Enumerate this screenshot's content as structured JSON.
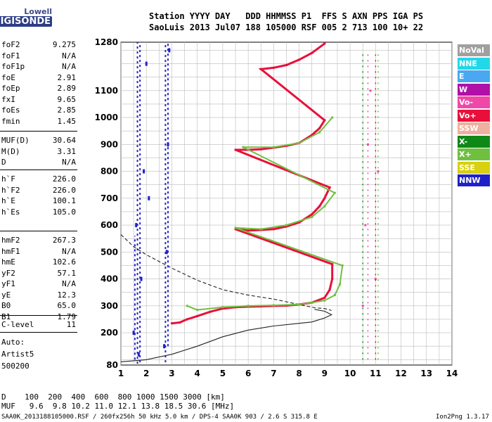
{
  "logo": {
    "line1": "Lowell",
    "line2": "DIGISONDE"
  },
  "header": {
    "line1": "Station YYYY DAY   DDD HHMMSS P1  FFS S AXN PPS IGA PS",
    "line2": "SaoLuis 2013 Jul07 188 105000 RSF 005 2 713 100 10+ 22"
  },
  "params_group1": [
    {
      "key": "foF2",
      "value": "9.275"
    },
    {
      "key": "foF1",
      "value": "N/A"
    },
    {
      "key": "foF1p",
      "value": "N/A"
    },
    {
      "key": "foE",
      "value": "2.91"
    },
    {
      "key": "foEp",
      "value": "2.89"
    },
    {
      "key": "fxI",
      "value": "9.65"
    },
    {
      "key": "foEs",
      "value": "2.85"
    },
    {
      "key": "fmin",
      "value": "1.45"
    }
  ],
  "params_group2": [
    {
      "key": "MUF(D)",
      "value": "30.64"
    },
    {
      "key": "M(D)",
      "value": "3.31"
    },
    {
      "key": "D",
      "value": "N/A"
    }
  ],
  "params_group3": [
    {
      "key": "h`F",
      "value": "226.0"
    },
    {
      "key": "h`F2",
      "value": "226.0"
    },
    {
      "key": "h`E",
      "value": "100.1"
    },
    {
      "key": "h`Es",
      "value": "105.0"
    }
  ],
  "params_group4": [
    {
      "key": "hmF2",
      "value": "267.3"
    },
    {
      "key": "hmF1",
      "value": "N/A"
    },
    {
      "key": "hmE",
      "value": "102.6"
    },
    {
      "key": "yF2",
      "value": "57.1"
    },
    {
      "key": "yF1",
      "value": "N/A"
    },
    {
      "key": "yE",
      "value": "12.3"
    },
    {
      "key": "B0",
      "value": "65.0"
    },
    {
      "key": "B1",
      "value": "1.79"
    }
  ],
  "params_group5": [
    {
      "key": "C-level",
      "value": "11"
    }
  ],
  "auto": {
    "line1": "Auto:",
    "line2": "Artist5",
    "line3": "500200"
  },
  "legend": [
    {
      "label": "NoVal",
      "color": "#a0a0a0"
    },
    {
      "label": "NNE",
      "color": "#22d8e8"
    },
    {
      "label": "E",
      "color": "#4aa8f0"
    },
    {
      "label": "W",
      "color": "#b010a8"
    },
    {
      "label": "Vo-",
      "color": "#f048a8"
    },
    {
      "label": "Vo+",
      "color": "#e8103a"
    },
    {
      "label": "SSW",
      "color": "#f0b0a0"
    },
    {
      "label": "X-",
      "color": "#108818"
    },
    {
      "label": "X+",
      "color": "#70c040"
    },
    {
      "label": "SSE",
      "color": "#d8d010"
    },
    {
      "label": "NNW",
      "color": "#2020c8"
    }
  ],
  "bottom": {
    "d_line": "D    100  200  400  600  800 1000 1500 3000 [km]",
    "muf_line": "MUF   9.6  9.8 10.2 11.0 12.1 13.8 18.5 30.6 [MHz]"
  },
  "footer": {
    "left": "SAA0K_2013188105000.RSF / 260fx256h 50 kHz 5.0 km / DPS-4 SAA0K 903 / 2.6 S 315.8 E",
    "right": "Ion2Png 1.3.17"
  },
  "chart_data": {
    "type": "scatter",
    "title": "",
    "xlabel": "",
    "ylabel": "",
    "xlim": [
      1,
      14
    ],
    "ylim": [
      80,
      1280
    ],
    "xticks": [
      1,
      2,
      3,
      4,
      5,
      6,
      7,
      8,
      9,
      10,
      11,
      12,
      13,
      14
    ],
    "yticks": [
      80,
      200,
      300,
      400,
      500,
      600,
      700,
      800,
      900,
      1000,
      1100,
      1280
    ],
    "grid": true,
    "series": [
      {
        "name": "Vo+",
        "color": "#e8103a",
        "points": [
          [
            3.0,
            235
          ],
          [
            3.3,
            238
          ],
          [
            3.6,
            250
          ],
          [
            4.0,
            262
          ],
          [
            4.5,
            278
          ],
          [
            5.0,
            290
          ],
          [
            5.5,
            295
          ],
          [
            6.0,
            297
          ],
          [
            6.5,
            298
          ],
          [
            7.0,
            300
          ],
          [
            7.5,
            301
          ],
          [
            8.0,
            305
          ],
          [
            8.5,
            312
          ],
          [
            9.0,
            330
          ],
          [
            9.2,
            360
          ],
          [
            9.3,
            400
          ],
          [
            9.3,
            455
          ],
          [
            5.5,
            585
          ],
          [
            6.0,
            580
          ],
          [
            6.5,
            582
          ],
          [
            7.0,
            585
          ],
          [
            7.5,
            595
          ],
          [
            8.0,
            610
          ],
          [
            8.5,
            640
          ],
          [
            8.8,
            670
          ],
          [
            9.0,
            700
          ],
          [
            9.2,
            740
          ],
          [
            5.5,
            880
          ],
          [
            6.0,
            880
          ],
          [
            6.5,
            882
          ],
          [
            7.0,
            888
          ],
          [
            7.5,
            895
          ],
          [
            8.0,
            905
          ],
          [
            8.5,
            935
          ],
          [
            8.8,
            960
          ],
          [
            9.0,
            990
          ],
          [
            6.5,
            1180
          ],
          [
            7.0,
            1185
          ],
          [
            7.5,
            1195
          ],
          [
            8.0,
            1215
          ],
          [
            8.5,
            1240
          ],
          [
            9.0,
            1275
          ]
        ]
      },
      {
        "name": "X+",
        "color": "#70c040",
        "points": [
          [
            3.6,
            300
          ],
          [
            4.0,
            285
          ],
          [
            5.0,
            295
          ],
          [
            6.0,
            300
          ],
          [
            7.0,
            302
          ],
          [
            8.0,
            305
          ],
          [
            8.5,
            312
          ],
          [
            9.0,
            320
          ],
          [
            9.4,
            340
          ],
          [
            9.6,
            380
          ],
          [
            9.7,
            450
          ],
          [
            5.5,
            590
          ],
          [
            6.5,
            585
          ],
          [
            7.5,
            600
          ],
          [
            8.5,
            630
          ],
          [
            9.0,
            670
          ],
          [
            9.4,
            720
          ],
          [
            5.8,
            890
          ],
          [
            7.0,
            890
          ],
          [
            8.0,
            905
          ],
          [
            8.8,
            945
          ],
          [
            9.3,
            1000
          ]
        ]
      },
      {
        "name": "NNW",
        "color": "#2020c8",
        "points": [
          [
            1.7,
            120
          ],
          [
            1.8,
            400
          ],
          [
            1.9,
            800
          ],
          [
            2.0,
            1200
          ],
          [
            1.6,
            600
          ],
          [
            2.7,
            150
          ],
          [
            2.8,
            500
          ],
          [
            2.85,
            900
          ],
          [
            2.9,
            1250
          ],
          [
            1.5,
            200
          ],
          [
            2.1,
            700
          ]
        ]
      },
      {
        "name": "Vo-",
        "color": "#f048a8",
        "points": [
          [
            10.5,
            300
          ],
          [
            10.6,
            600
          ],
          [
            10.7,
            900
          ],
          [
            10.8,
            1100
          ],
          [
            11.0,
            400
          ],
          [
            11.1,
            800
          ]
        ]
      }
    ],
    "profile_solid": [
      [
        1.0,
        92
      ],
      [
        2.0,
        100
      ],
      [
        3.0,
        120
      ],
      [
        4.0,
        150
      ],
      [
        5.0,
        185
      ],
      [
        6.0,
        210
      ],
      [
        7.0,
        225
      ],
      [
        8.0,
        235
      ],
      [
        8.5,
        240
      ],
      [
        9.0,
        255
      ],
      [
        9.275,
        267
      ],
      [
        9.0,
        280
      ],
      [
        8.6,
        287
      ]
    ],
    "profile_dashed": [
      [
        1.0,
        565
      ],
      [
        1.5,
        520
      ],
      [
        2.0,
        490
      ],
      [
        3.0,
        440
      ],
      [
        4.0,
        395
      ],
      [
        5.0,
        360
      ],
      [
        6.0,
        340
      ],
      [
        7.0,
        325
      ],
      [
        8.0,
        305
      ],
      [
        8.6,
        293
      ],
      [
        9.0,
        290
      ],
      [
        9.275,
        283
      ]
    ]
  }
}
